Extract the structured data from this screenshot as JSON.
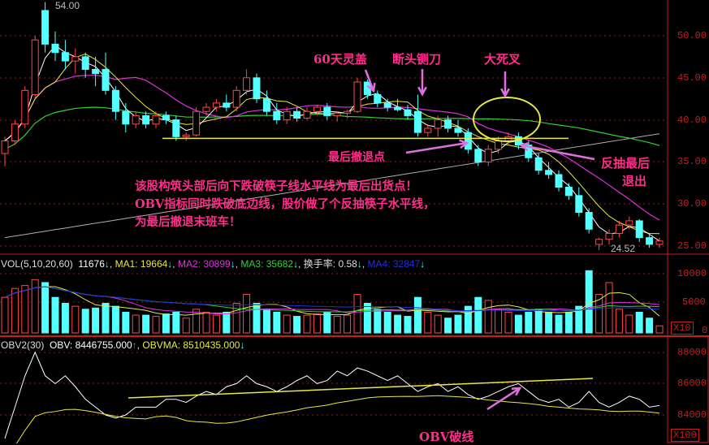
{
  "chart_data": {
    "type": "candlestick",
    "price_panel": {
      "ylim": [
        23.5,
        54.5
      ],
      "ticks": [
        "50.00",
        "45.00",
        "40.00",
        "35.00",
        "30.00",
        "25.00"
      ],
      "high_label": "54.00",
      "low_label": "24.52",
      "ohlc": [
        [
          36,
          38,
          34.5,
          37.5
        ],
        [
          37.5,
          40,
          37,
          39.5
        ],
        [
          39.5,
          44,
          39,
          43.5
        ],
        [
          43,
          50,
          42.5,
          49.5
        ],
        [
          53,
          54,
          48,
          49
        ],
        [
          49,
          50.5,
          47,
          48
        ],
        [
          48,
          49.5,
          46,
          47
        ],
        [
          47,
          48.5,
          45.5,
          47.5
        ],
        [
          47.5,
          48,
          45,
          46
        ],
        [
          46,
          47.5,
          44,
          45.5
        ],
        [
          46,
          48,
          43,
          43.5
        ],
        [
          43.5,
          44,
          40,
          41
        ],
        [
          41,
          42,
          38.5,
          39.5
        ],
        [
          39.5,
          41,
          39,
          40.5
        ],
        [
          40.5,
          41,
          39,
          39.5
        ],
        [
          39.5,
          41,
          39,
          40.5
        ],
        [
          40.5,
          41,
          39.5,
          40
        ],
        [
          40,
          40.5,
          37.5,
          38
        ],
        [
          38,
          38.5,
          37.5,
          38.2
        ],
        [
          38.2,
          41.5,
          38,
          41
        ],
        [
          41,
          42,
          40.5,
          41.5
        ],
        [
          41.5,
          42.5,
          41,
          42
        ],
        [
          42,
          43,
          41,
          41.5
        ],
        [
          41.5,
          44,
          41,
          43.5
        ],
        [
          43.5,
          46,
          43,
          45
        ],
        [
          45,
          45.5,
          42,
          42.5
        ],
        [
          42.5,
          43.5,
          40.5,
          41
        ],
        [
          41,
          42,
          39.5,
          40
        ],
        [
          40,
          41.5,
          39.5,
          41
        ],
        [
          41,
          41.5,
          39.8,
          40.2
        ],
        [
          40.2,
          41.5,
          40,
          41
        ],
        [
          41,
          41.8,
          40.5,
          41.5
        ],
        [
          41.5,
          42,
          40,
          40.5
        ],
        [
          40.5,
          41,
          39.8,
          40.8
        ],
        [
          40.8,
          41.2,
          40.2,
          41
        ],
        [
          41,
          45,
          40.8,
          44.5
        ],
        [
          44.5,
          44.8,
          42.5,
          43
        ],
        [
          43,
          43.5,
          41.5,
          42
        ],
        [
          42,
          42.5,
          41,
          41.5
        ],
        [
          41.5,
          42.5,
          41,
          41.2
        ],
        [
          41.2,
          41.8,
          40,
          40.5
        ],
        [
          41,
          43,
          38,
          38.5
        ],
        [
          38.5,
          39.5,
          38,
          39
        ],
        [
          39,
          40.5,
          38,
          40
        ],
        [
          40,
          40.5,
          38.5,
          39
        ],
        [
          39,
          40,
          38,
          38.5
        ],
        [
          38.5,
          39,
          36,
          36.5
        ],
        [
          36.5,
          37,
          34.5,
          35
        ],
        [
          35,
          37,
          34.5,
          36.5
        ],
        [
          36.5,
          38,
          36,
          37.5
        ],
        [
          37.5,
          38.5,
          37,
          38
        ],
        [
          38,
          38.5,
          36.5,
          37
        ],
        [
          37,
          37.5,
          35,
          35.5
        ],
        [
          35.5,
          36,
          33.5,
          34
        ],
        [
          34,
          35,
          33,
          33.5
        ],
        [
          33.5,
          34,
          31.5,
          32
        ],
        [
          32,
          32.5,
          30.5,
          31
        ],
        [
          31,
          32,
          28.5,
          29
        ],
        [
          29,
          29.5,
          26.5,
          27
        ],
        [
          25.2,
          26,
          24.52,
          25.8
        ],
        [
          25.8,
          27,
          25.2,
          26.5
        ],
        [
          26.5,
          28,
          26,
          27.5
        ],
        [
          27.5,
          28.5,
          27,
          28
        ],
        [
          28,
          28.2,
          25.5,
          26
        ],
        [
          26,
          26.5,
          24.8,
          25.2
        ],
        [
          25.2,
          26,
          24.8,
          25.6
        ]
      ],
      "support_level": 37.8
    },
    "volume_panel": {
      "header": {
        "name": "VOL(5,10,20,60)",
        "value": "11676",
        "ma1": "MA1: 19664",
        "ma2": "MA2: 30899",
        "ma3": "MA3: 35682",
        "turnover": "换手率: 0.58",
        "ma4": "MA4: 32847",
        "sep": ","
      },
      "ticks": [
        "10000",
        "5000",
        "0"
      ],
      "unit": "X10",
      "values": [
        6000,
        7500,
        8000,
        9000,
        8500,
        6000,
        5000,
        4500,
        4000,
        4200,
        5000,
        4500,
        3500,
        3000,
        3000,
        2800,
        3200,
        3500,
        2500,
        4000,
        3500,
        3000,
        3500,
        5000,
        6500,
        5000,
        4000,
        3500,
        3000,
        2800,
        3000,
        3200,
        3500,
        2800,
        3000,
        6500,
        5000,
        4000,
        3500,
        3000,
        2800,
        6000,
        3500,
        3000,
        2500,
        3000,
        4500,
        6000,
        5500,
        4000,
        3500,
        3000,
        3500,
        4000,
        3500,
        3000,
        3500,
        4500,
        10500,
        6500,
        8500,
        4000,
        3000,
        3500,
        2500,
        1200
      ]
    },
    "obv_panel": {
      "header": {
        "name": "OBV2(30)",
        "obv": "OBV: 8446755.000",
        "obvma": "OBVMA: 8510435.000"
      },
      "ticks": [
        "88000",
        "86000",
        "84000"
      ],
      "unit": "X100",
      "values": [
        82500,
        84500,
        86500,
        88000,
        86500,
        86000,
        86500,
        85800,
        85000,
        84500,
        84000,
        83800,
        84000,
        84500,
        84500,
        84500,
        85000,
        85000,
        84800,
        85200,
        85500,
        85300,
        85800,
        86000,
        86500,
        86000,
        85800,
        85500,
        85800,
        86200,
        86500,
        86000,
        86200,
        86800,
        86500,
        87000,
        86800,
        86500,
        86200,
        86500,
        86000,
        85500,
        85800,
        86000,
        85500,
        85800,
        85300,
        85000,
        85200,
        85500,
        85800,
        86000,
        85500,
        85000,
        84800,
        85000,
        84500,
        84800,
        85500,
        84800,
        84500,
        84800,
        85200,
        85000,
        84500,
        84600
      ]
    },
    "colors": {
      "up": "#ff4848",
      "down": "#54ffff",
      "ma5": "#ffffff",
      "ma10": "#e8e840",
      "ma20": "#e030e0",
      "ma60": "#30d030",
      "ma_long": "#b0b0b0",
      "annotation": "#ff2e8a",
      "grid": "#a01818"
    }
  },
  "annotations": {
    "head_cover": "60天灵盖",
    "guillotine": "断头铡刀",
    "death_cross": "大死叉",
    "last_exit": "最后撤退点",
    "rebound_exit_1": "反抽最后",
    "rebound_exit_2": "退出",
    "para1": "该股构筑头部后向下跌破筷子线水平线为最后出货点！",
    "para2": "OBV指标同时跌破底边线，股价做了个反抽筷子水平线，",
    "para3": "为最后撤退末班车！",
    "obv_break": "OBV破线"
  }
}
